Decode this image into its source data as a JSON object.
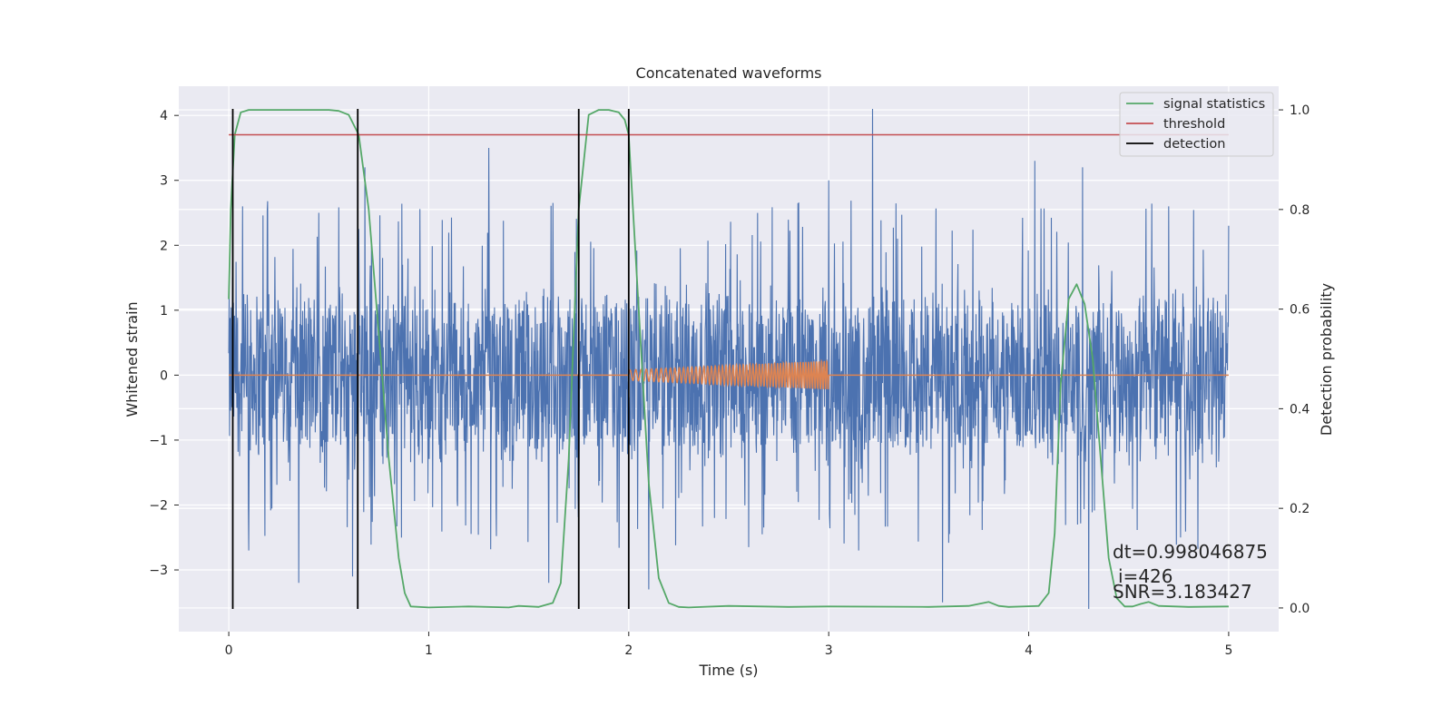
{
  "chart_data": {
    "type": "line",
    "title": "Concatenated waveforms",
    "xlabel": "Time (s)",
    "ylabel": "Whitened strain",
    "y2label": "Detection probability",
    "xlim": [
      -0.25,
      5.25
    ],
    "ylim": [
      -3.95,
      4.45
    ],
    "y2lim": [
      -0.0475,
      1.0475
    ],
    "xticks": [
      0,
      1,
      2,
      3,
      4,
      5
    ],
    "yticks": [
      -3,
      -2,
      -1,
      0,
      1,
      2,
      3,
      4
    ],
    "y2ticks": [
      0.0,
      0.2,
      0.4,
      0.6,
      0.8,
      1.0
    ],
    "grid": true,
    "legend_position": "top-right",
    "legend": [
      "signal statistics",
      "threshold",
      "detection"
    ],
    "colors": {
      "strain": "#4c72b0",
      "injected_waveform": "#dd8452",
      "signal_statistics": "#55a868",
      "threshold": "#c44e52",
      "detection": "#000000",
      "background": "#eaeaf2"
    },
    "series": [
      {
        "name": "signal statistics",
        "axis": "right",
        "x": [
          0.0,
          0.01,
          0.03,
          0.06,
          0.1,
          0.3,
          0.5,
          0.55,
          0.6,
          0.65,
          0.7,
          0.75,
          0.8,
          0.85,
          0.88,
          0.91,
          1.0,
          1.2,
          1.4,
          1.45,
          1.55,
          1.62,
          1.66,
          1.7,
          1.75,
          1.8,
          1.85,
          1.9,
          1.95,
          1.98,
          2.0,
          2.05,
          2.1,
          2.15,
          2.2,
          2.25,
          2.3,
          2.5,
          2.8,
          3.0,
          3.5,
          3.7,
          3.8,
          3.85,
          3.9,
          4.05,
          4.1,
          4.13,
          4.16,
          4.2,
          4.24,
          4.28,
          4.32,
          4.36,
          4.4,
          4.44,
          4.48,
          4.52,
          4.56,
          4.6,
          4.65,
          4.8,
          5.0
        ],
        "y": [
          0.62,
          0.8,
          0.95,
          0.995,
          1.0,
          1.0,
          1.0,
          0.998,
          0.99,
          0.95,
          0.8,
          0.55,
          0.3,
          0.1,
          0.03,
          0.003,
          0.001,
          0.003,
          0.001,
          0.004,
          0.002,
          0.01,
          0.05,
          0.3,
          0.8,
          0.99,
          1.0,
          1.0,
          0.995,
          0.98,
          0.95,
          0.6,
          0.25,
          0.06,
          0.01,
          0.002,
          0.001,
          0.004,
          0.002,
          0.003,
          0.002,
          0.004,
          0.012,
          0.004,
          0.002,
          0.004,
          0.03,
          0.15,
          0.45,
          0.62,
          0.65,
          0.61,
          0.5,
          0.3,
          0.1,
          0.02,
          0.003,
          0.003,
          0.008,
          0.012,
          0.004,
          0.002,
          0.003
        ]
      },
      {
        "name": "threshold",
        "axis": "right",
        "x": [
          0.0,
          5.0
        ],
        "y": [
          0.95,
          0.95
        ]
      },
      {
        "name": "detection",
        "axis": "left",
        "x": [
          0.02,
          0.645,
          1.75,
          2.0
        ],
        "ymin": -3.6,
        "ymax": 4.1
      }
    ],
    "strain_trace": {
      "x_range": [
        0.0,
        5.0
      ],
      "typical_band": [
        -1.5,
        1.5
      ],
      "peaks": [
        {
          "x": 0.02,
          "y": 1.5
        },
        {
          "x": 0.07,
          "y": 2.6
        },
        {
          "x": 0.1,
          "y": -2.7
        },
        {
          "x": 0.45,
          "y": 2.5
        },
        {
          "x": 0.35,
          "y": -3.2
        },
        {
          "x": 0.68,
          "y": 3.2
        },
        {
          "x": 0.62,
          "y": -3.1
        },
        {
          "x": 1.3,
          "y": 3.5
        },
        {
          "x": 1.6,
          "y": -3.2
        },
        {
          "x": 2.1,
          "y": 3.3
        },
        {
          "x": 2.1,
          "y": -3.3
        },
        {
          "x": 3.0,
          "y": 3.0
        },
        {
          "x": 3.22,
          "y": 4.1
        },
        {
          "x": 3.15,
          "y": -2.7
        },
        {
          "x": 3.57,
          "y": -3.5
        },
        {
          "x": 4.03,
          "y": 3.3
        },
        {
          "x": 4.27,
          "y": 3.2
        },
        {
          "x": 4.3,
          "y": -3.6
        },
        {
          "x": 4.7,
          "y": 2.6
        },
        {
          "x": 5.0,
          "y": 2.3
        }
      ]
    },
    "injected_waveform": {
      "baseline": 0.0,
      "flat_ranges": [
        [
          0.0,
          2.0
        ],
        [
          3.0,
          5.0
        ]
      ],
      "chirp_range": [
        2.0,
        3.0
      ],
      "amplitude_start": 0.08,
      "amplitude_end": 0.22
    },
    "annotations": [
      "dt=0.998046875",
      "i=426",
      "SNR=3.183427"
    ]
  }
}
